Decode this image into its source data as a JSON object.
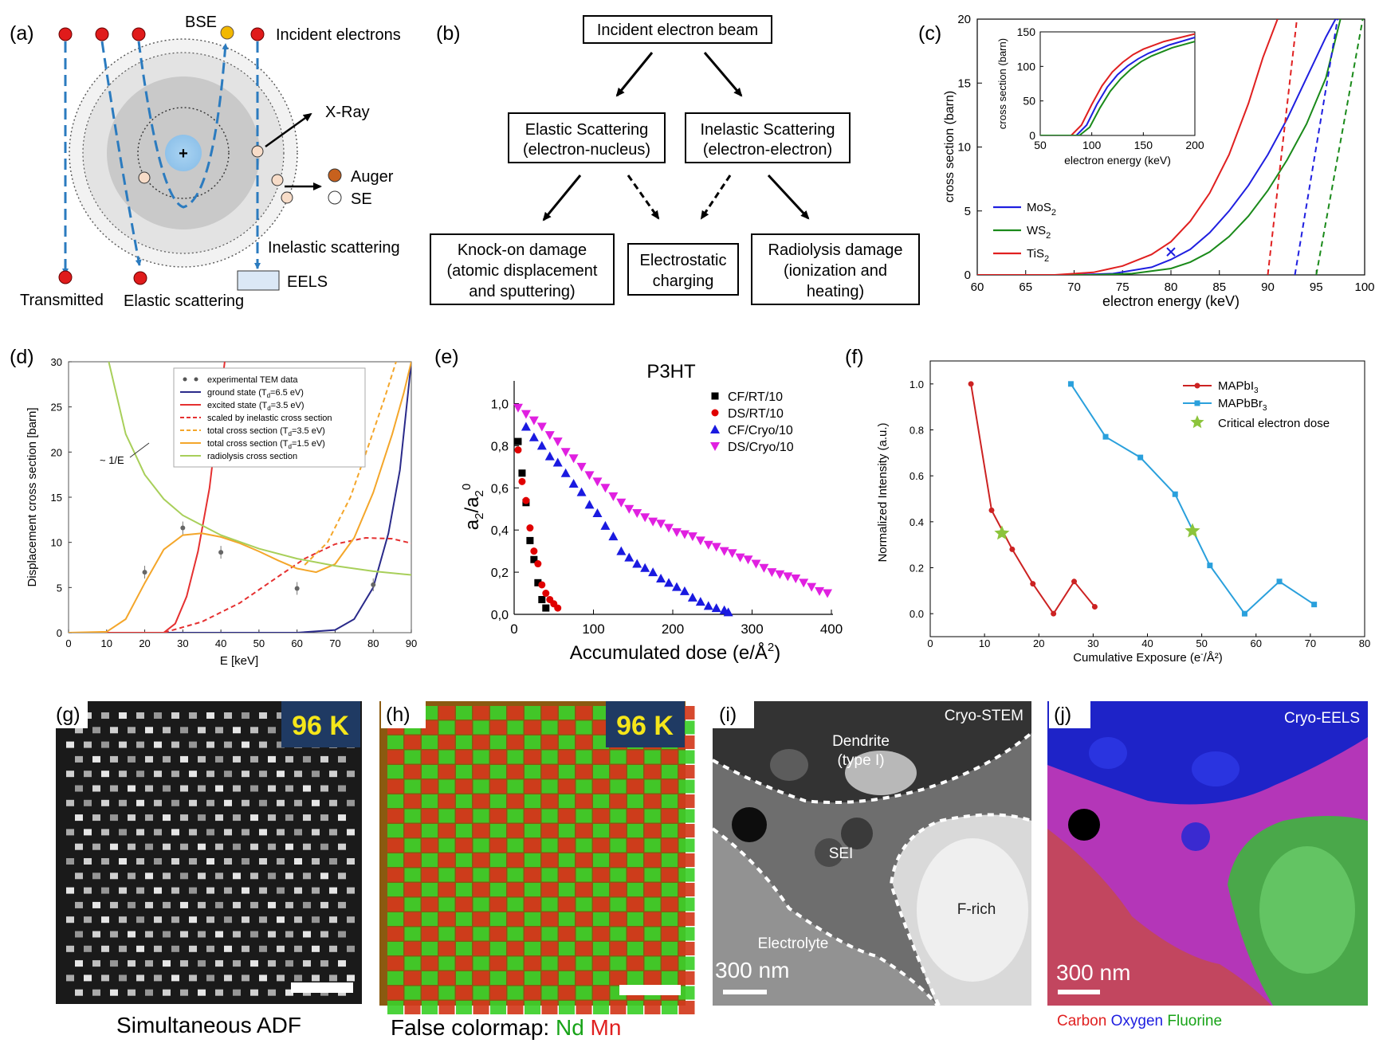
{
  "panel_a": {
    "label": "(a)",
    "bse": "BSE",
    "incident": "Incident electrons",
    "xray": "X-Ray",
    "auger": "Auger",
    "se": "SE",
    "inelastic": "Inelastic scattering",
    "eels": "EELS",
    "transmitted": "Transmitted",
    "elastic": "Elastic scattering"
  },
  "panel_b": {
    "label": "(b)",
    "beam": "Incident electron beam",
    "elastic_1": "Elastic Scattering",
    "elastic_2": "(electron-nucleus)",
    "inelastic_1": "Inelastic Scattering",
    "inelastic_2": "(electron-electron)",
    "knock_1": "Knock-on damage",
    "knock_2": "(atomic displacement",
    "knock_3": "and sputtering)",
    "charge_1": "Electrostatic",
    "charge_2": "charging",
    "radio_1": "Radiolysis damage",
    "radio_2": "(ionization and",
    "radio_3": "heating)"
  },
  "panel_c": {
    "label": "(c)",
    "xlabel": "electron energy (keV)",
    "ylabel": "cross section (barn)",
    "inset_xlabel": "electron energy (keV)",
    "inset_ylabel": "cross section (barn)",
    "legend": [
      "MoS",
      "WS",
      "TiS"
    ],
    "legend_sub": "2",
    "colors": {
      "MoS2": "#1f1fe0",
      "WS2": "#1a8a1a",
      "TiS2": "#e02020"
    }
  },
  "panel_d": {
    "label": "(d)",
    "xlabel": "E [keV]",
    "ylabel": "Displacement cross section [barn]",
    "annot": "~ 1/E",
    "legend": [
      {
        "pre": "experimental TEM data",
        "sub": "",
        "post": ""
      },
      {
        "pre": "ground state (T",
        "sub": "d",
        "post": "=6.5 eV)"
      },
      {
        "pre": "excited state (T",
        "sub": "d",
        "post": "=3.5 eV)"
      },
      {
        "pre": "scaled by inelastic cross section",
        "sub": "",
        "post": ""
      },
      {
        "pre": "total cross section (T",
        "sub": "d",
        "post": "=3.5 eV)"
      },
      {
        "pre": "total cross section (T",
        "sub": "d",
        "post": "=1.5 eV)"
      },
      {
        "pre": "radiolysis cross section",
        "sub": "",
        "post": ""
      }
    ]
  },
  "panel_e": {
    "label": "(e)",
    "title": "P3HT",
    "xlabel": "Accumulated dose (e/Å",
    "xlabel_sup": "2",
    "xlabel_end": ")",
    "ylabel_main": "a",
    "legend": [
      "CF/RT/10",
      "DS/RT/10",
      "CF/Cryo/10",
      "DS/Cryo/10"
    ]
  },
  "panel_f": {
    "label": "(f)",
    "xlabel": "Cumulative Exposure (e",
    "xlabel_sup": "-",
    "xlabel_end": "/Å²)",
    "ylabel": "Normalized Intensity (a.u.)",
    "legend": [
      {
        "pre": "MAPbI",
        "sub": "3"
      },
      {
        "pre": "MAPbBr",
        "sub": "3"
      },
      {
        "pre": "Critical electron dose",
        "sub": ""
      }
    ]
  },
  "panel_g": {
    "label": "(g)",
    "temp": "96 K",
    "caption": "Simultaneous ADF"
  },
  "panel_h": {
    "label": "(h)",
    "temp": "96 K",
    "caption_pre": "False colormap: ",
    "caption_nd": "Nd",
    "caption_mn": "Mn"
  },
  "panel_i": {
    "label": "(i)",
    "mode": "Cryo-STEM",
    "dendrite_1": "Dendrite",
    "dendrite_2": "(type I)",
    "sei": "SEI",
    "frich": "F-rich",
    "electrolyte": "Electrolyte",
    "scale": "300 nm"
  },
  "panel_j": {
    "label": "(j)",
    "mode": "Cryo-EELS",
    "scale": "300 nm",
    "carbon": "Carbon",
    "oxygen": "Oxygen",
    "fluorine": "Fluorine"
  },
  "chart_data": [
    {
      "id": "c",
      "type": "line",
      "xlabel": "electron energy (keV)",
      "ylabel": "cross section (barn)",
      "xlim": [
        60,
        100
      ],
      "ylim": [
        0,
        20
      ],
      "xticks": [
        60,
        65,
        70,
        75,
        80,
        85,
        90,
        95,
        100
      ],
      "yticks": [
        0,
        5,
        10,
        15,
        20
      ],
      "series": [
        {
          "name": "MoS2",
          "x": [
            60,
            70,
            74,
            78,
            80,
            82,
            84,
            86,
            88,
            90,
            92,
            94,
            96,
            97
          ],
          "y": [
            0,
            0,
            0.1,
            0.6,
            1.2,
            2.0,
            3.3,
            5.0,
            7.0,
            9.4,
            12.2,
            15.4,
            18.6,
            20
          ]
        },
        {
          "name": "WS2",
          "x": [
            60,
            72,
            76,
            80,
            82,
            84,
            86,
            88,
            90,
            92,
            94,
            96,
            97.5
          ],
          "y": [
            0,
            0,
            0.1,
            0.5,
            1.0,
            1.8,
            3.0,
            4.6,
            6.6,
            9.0,
            11.8,
            15.4,
            20
          ]
        },
        {
          "name": "TiS2",
          "x": [
            60,
            68,
            72,
            75,
            78,
            80,
            82,
            84,
            86,
            88,
            89.5,
            91
          ],
          "y": [
            0,
            0,
            0.2,
            0.7,
            1.6,
            2.6,
            4.2,
            6.4,
            9.4,
            13.4,
            17.0,
            20
          ]
        }
      ],
      "dashed": [
        {
          "name": "TiS2",
          "x": [
            90,
            93
          ],
          "y": [
            0,
            20
          ]
        },
        {
          "name": "MoS2",
          "x": [
            92.8,
            97.2
          ],
          "y": [
            0,
            20
          ]
        },
        {
          "name": "WS2",
          "x": [
            95,
            99.8
          ],
          "y": [
            0,
            20
          ]
        }
      ],
      "marker": {
        "x": 80,
        "y": 1.8,
        "name": "MoS2"
      },
      "inset": {
        "xlim": [
          50,
          200
        ],
        "ylim": [
          0,
          150
        ],
        "xticks": [
          50,
          100,
          150,
          200
        ],
        "yticks": [
          0,
          50,
          100,
          150
        ],
        "series": [
          {
            "name": "TiS2",
            "x": [
              50,
              80,
              90,
              100,
              110,
              120,
              130,
              140,
              150,
              170,
              200
            ],
            "y": [
              0,
              0,
              15,
              45,
              72,
              92,
              106,
              117,
              125,
              136,
              147
            ]
          },
          {
            "name": "MoS2",
            "x": [
              50,
              85,
              95,
              105,
              115,
              125,
              135,
              145,
              155,
              175,
              200
            ],
            "y": [
              0,
              0,
              15,
              45,
              70,
              88,
              101,
              111,
              119,
              131,
              142
            ]
          },
          {
            "name": "WS2",
            "x": [
              50,
              88,
              98,
              108,
              118,
              128,
              138,
              148,
              158,
              178,
              200
            ],
            "y": [
              0,
              0,
              12,
              40,
              64,
              82,
              96,
              107,
              115,
              127,
              136
            ]
          }
        ]
      }
    },
    {
      "id": "d",
      "type": "line",
      "xlabel": "E [keV]",
      "ylabel": "Displacement cross section [barn]",
      "xlim": [
        0,
        90
      ],
      "ylim": [
        0,
        30
      ],
      "xticks": [
        0,
        10,
        20,
        30,
        40,
        50,
        60,
        70,
        80,
        90
      ],
      "yticks": [
        0,
        5,
        10,
        15,
        20,
        25,
        30
      ],
      "series": [
        {
          "name": "ground state (Td=6.5 eV)",
          "color": "#2a2a8a",
          "dash": false,
          "x": [
            0,
            60,
            70,
            75,
            80,
            84,
            87,
            90
          ],
          "y": [
            0,
            0,
            0.3,
            1.5,
            5,
            11,
            18,
            30
          ]
        },
        {
          "name": "excited state (Td=3.5 eV)",
          "color": "#e53030",
          "dash": false,
          "x": [
            0,
            25,
            28,
            31,
            34,
            37,
            39,
            41
          ],
          "y": [
            0,
            0,
            1,
            4,
            9,
            16,
            23,
            30
          ]
        },
        {
          "name": "scaled by inelastic cross section",
          "color": "#e53030",
          "dash": true,
          "x": [
            0,
            25,
            35,
            45,
            55,
            62,
            70,
            78,
            85,
            90
          ],
          "y": [
            0,
            0,
            1.2,
            3.3,
            6.2,
            8.2,
            9.8,
            10.5,
            10.4,
            9.9
          ]
        },
        {
          "name": "total cross section (Td=3.5 eV)",
          "color": "#f4a62a",
          "dash": true,
          "x": [
            62,
            68,
            74,
            79,
            83,
            86
          ],
          "y": [
            7.5,
            10,
            15,
            21,
            26,
            30
          ]
        },
        {
          "name": "total cross section (Td=1.5 eV)",
          "color": "#f4a62a",
          "dash": false,
          "x": [
            0,
            10,
            15,
            20,
            25,
            30,
            35,
            40,
            45,
            50,
            55,
            60,
            65,
            70,
            75,
            80,
            85,
            88,
            90
          ],
          "y": [
            0,
            0.1,
            1.5,
            5.5,
            9.2,
            10.8,
            11,
            10.6,
            9.9,
            9,
            8,
            7.1,
            6.7,
            7.6,
            10.5,
            15.5,
            22,
            26.5,
            30
          ]
        },
        {
          "name": "radiolysis cross section",
          "color": "#a8cf5a",
          "dash": false,
          "x": [
            10,
            15,
            20,
            25,
            30,
            40,
            50,
            60,
            70,
            80,
            90
          ],
          "y": [
            31,
            22,
            17.5,
            14.8,
            13,
            10.8,
            9.3,
            8.2,
            7.4,
            6.8,
            6.4
          ]
        }
      ],
      "points": {
        "x": [
          20,
          30,
          40,
          60,
          80
        ],
        "y": [
          6.7,
          11.6,
          8.9,
          4.9,
          5.3
        ]
      }
    },
    {
      "id": "e",
      "type": "scatter",
      "title": "P3HT",
      "xlabel": "Accumulated dose (e/Å²)",
      "ylabel": "a2/a2^0",
      "xlim": [
        0,
        400
      ],
      "ylim": [
        0,
        1.1
      ],
      "xticks": [
        0,
        100,
        200,
        300,
        400
      ],
      "yticks": [
        0,
        0.2,
        0.4,
        0.6,
        0.8,
        1.0
      ],
      "ytick_labels": [
        "0,0",
        "0,2",
        "0,4",
        "0,6",
        "0,8",
        "1,0"
      ],
      "series": [
        {
          "name": "CF/RT/10",
          "marker": "square",
          "color": "#000000",
          "x": [
            5,
            10,
            15,
            20,
            25,
            30,
            35,
            40
          ],
          "y": [
            0.82,
            0.67,
            0.53,
            0.35,
            0.26,
            0.15,
            0.07,
            0.03
          ]
        },
        {
          "name": "DS/RT/10",
          "marker": "circle",
          "color": "#e00000",
          "x": [
            5,
            10,
            15,
            20,
            25,
            30,
            35,
            40,
            45,
            50,
            55
          ],
          "y": [
            0.78,
            0.63,
            0.54,
            0.41,
            0.3,
            0.24,
            0.14,
            0.1,
            0.07,
            0.05,
            0.03
          ]
        },
        {
          "name": "CF/Cryo/10",
          "marker": "triangle",
          "color": "#1a1ae0",
          "x": [
            15,
            25,
            35,
            45,
            55,
            65,
            75,
            85,
            95,
            105,
            115,
            125,
            135,
            145,
            155,
            165,
            175,
            185,
            195,
            205,
            215,
            225,
            235,
            245,
            255,
            265,
            270
          ],
          "y": [
            0.89,
            0.84,
            0.8,
            0.75,
            0.72,
            0.67,
            0.62,
            0.58,
            0.52,
            0.48,
            0.42,
            0.37,
            0.3,
            0.27,
            0.24,
            0.22,
            0.2,
            0.17,
            0.15,
            0.13,
            0.11,
            0.08,
            0.06,
            0.04,
            0.03,
            0.02,
            0.01
          ]
        },
        {
          "name": "DS/Cryo/10",
          "marker": "triangle-down",
          "color": "#e020e0",
          "x": [
            5,
            15,
            25,
            35,
            45,
            55,
            65,
            75,
            85,
            95,
            105,
            115,
            125,
            135,
            145,
            155,
            165,
            175,
            185,
            195,
            205,
            215,
            225,
            235,
            245,
            255,
            265,
            275,
            285,
            295,
            305,
            315,
            325,
            335,
            345,
            355,
            365,
            375,
            385,
            395
          ],
          "y": [
            0.98,
            0.95,
            0.92,
            0.89,
            0.85,
            0.82,
            0.77,
            0.74,
            0.7,
            0.66,
            0.63,
            0.6,
            0.56,
            0.53,
            0.5,
            0.48,
            0.46,
            0.44,
            0.43,
            0.41,
            0.39,
            0.38,
            0.37,
            0.35,
            0.33,
            0.32,
            0.3,
            0.29,
            0.27,
            0.26,
            0.24,
            0.22,
            0.2,
            0.19,
            0.18,
            0.17,
            0.15,
            0.13,
            0.11,
            0.1
          ]
        }
      ]
    },
    {
      "id": "f",
      "type": "line",
      "xlabel": "Cumulative Exposure (e-/Å²)",
      "ylabel": "Normalized Intensity (a.u.)",
      "xlim": [
        0,
        80
      ],
      "ylim": [
        -0.1,
        1.1
      ],
      "xticks": [
        0,
        10,
        20,
        30,
        40,
        50,
        60,
        70,
        80
      ],
      "yticks": [
        0,
        0.2,
        0.4,
        0.6,
        0.8,
        1.0
      ],
      "ytick_labels": [
        "0.0",
        "0.2",
        "0.4",
        "0.6",
        "0.8",
        "1.0"
      ],
      "series": [
        {
          "name": "MAPbI3",
          "color": "#cc2222",
          "x": [
            7.5,
            11.3,
            15.1,
            18.9,
            22.7,
            26.5,
            30.3
          ],
          "y": [
            1.0,
            0.45,
            0.28,
            0.13,
            0.0,
            0.14,
            0.03
          ]
        },
        {
          "name": "MAPbBr3",
          "color": "#2aa0dc",
          "x": [
            25.9,
            32.3,
            38.7,
            45.1,
            51.5,
            57.9,
            64.3,
            70.7
          ],
          "y": [
            1.0,
            0.77,
            0.68,
            0.52,
            0.21,
            0.0,
            0.14,
            0.04
          ]
        }
      ],
      "critical": {
        "name": "Critical electron dose",
        "x": [
          13.2,
          48.3
        ],
        "y": [
          0.35,
          0.36
        ]
      }
    }
  ]
}
